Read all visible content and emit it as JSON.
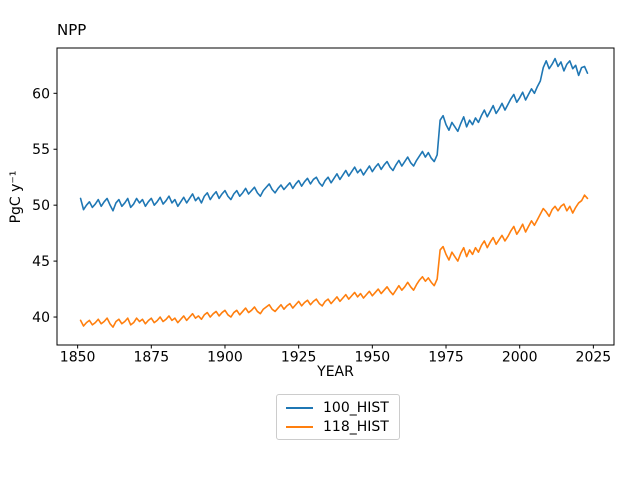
{
  "chart_data": {
    "type": "line",
    "title": "NPP",
    "xlabel": "YEAR",
    "ylabel": "PgC y⁻¹",
    "grid": false,
    "legend_position": "below-center",
    "xlim": [
      1843,
      2032
    ],
    "ylim": [
      37.5,
      64.05
    ],
    "xticks": [
      1850,
      1875,
      1900,
      1925,
      1950,
      1975,
      2000,
      2025
    ],
    "yticks": [
      40,
      45,
      50,
      55,
      60
    ],
    "x": [
      1851,
      1852,
      1853,
      1854,
      1855,
      1856,
      1857,
      1858,
      1859,
      1860,
      1861,
      1862,
      1863,
      1864,
      1865,
      1866,
      1867,
      1868,
      1869,
      1870,
      1871,
      1872,
      1873,
      1874,
      1875,
      1876,
      1877,
      1878,
      1879,
      1880,
      1881,
      1882,
      1883,
      1884,
      1885,
      1886,
      1887,
      1888,
      1889,
      1890,
      1891,
      1892,
      1893,
      1894,
      1895,
      1896,
      1897,
      1898,
      1899,
      1900,
      1901,
      1902,
      1903,
      1904,
      1905,
      1906,
      1907,
      1908,
      1909,
      1910,
      1911,
      1912,
      1913,
      1914,
      1915,
      1916,
      1917,
      1918,
      1919,
      1920,
      1921,
      1922,
      1923,
      1924,
      1925,
      1926,
      1927,
      1928,
      1929,
      1930,
      1931,
      1932,
      1933,
      1934,
      1935,
      1936,
      1937,
      1938,
      1939,
      1940,
      1941,
      1942,
      1943,
      1944,
      1945,
      1946,
      1947,
      1948,
      1949,
      1950,
      1951,
      1952,
      1953,
      1954,
      1955,
      1956,
      1957,
      1958,
      1959,
      1960,
      1961,
      1962,
      1963,
      1964,
      1965,
      1966,
      1967,
      1968,
      1969,
      1970,
      1971,
      1972,
      1973,
      1974,
      1975,
      1976,
      1977,
      1978,
      1979,
      1980,
      1981,
      1982,
      1983,
      1984,
      1985,
      1986,
      1987,
      1988,
      1989,
      1990,
      1991,
      1992,
      1993,
      1994,
      1995,
      1996,
      1997,
      1998,
      1999,
      2000,
      2001,
      2002,
      2003,
      2004,
      2005,
      2006,
      2007,
      2008,
      2009,
      2010,
      2011,
      2012,
      2013,
      2014,
      2015,
      2016,
      2017,
      2018,
      2019,
      2020,
      2021,
      2022,
      2023
    ],
    "series": [
      {
        "name": "100_HIST",
        "color": "#1f77b4",
        "values": [
          50.6,
          49.6,
          50.0,
          50.3,
          49.8,
          50.1,
          50.5,
          49.9,
          50.3,
          50.6,
          50.0,
          49.5,
          50.2,
          50.5,
          49.9,
          50.2,
          50.6,
          49.8,
          50.1,
          50.6,
          50.2,
          50.5,
          49.9,
          50.3,
          50.6,
          50.0,
          50.3,
          50.7,
          50.1,
          50.4,
          50.8,
          50.2,
          50.5,
          49.9,
          50.3,
          50.7,
          50.2,
          50.6,
          51.0,
          50.4,
          50.7,
          50.2,
          50.8,
          51.1,
          50.5,
          50.9,
          51.2,
          50.6,
          51.0,
          51.3,
          50.8,
          50.5,
          51.0,
          51.3,
          50.8,
          51.1,
          51.5,
          51.0,
          51.3,
          51.6,
          51.1,
          50.8,
          51.3,
          51.6,
          51.9,
          51.4,
          51.1,
          51.5,
          51.8,
          51.4,
          51.7,
          52.0,
          51.5,
          51.9,
          52.2,
          51.7,
          52.1,
          52.4,
          51.9,
          52.3,
          52.5,
          52.0,
          51.7,
          52.2,
          52.5,
          52.0,
          52.4,
          52.8,
          52.3,
          52.7,
          53.1,
          52.6,
          53.0,
          53.4,
          52.9,
          53.2,
          52.7,
          53.1,
          53.5,
          53.0,
          53.4,
          53.7,
          53.2,
          53.6,
          53.9,
          53.4,
          53.1,
          53.6,
          54.0,
          53.5,
          53.9,
          54.3,
          53.8,
          53.5,
          54.0,
          54.4,
          54.8,
          54.3,
          54.7,
          54.2,
          53.9,
          54.5,
          57.6,
          58.0,
          57.2,
          56.7,
          57.4,
          57.0,
          56.6,
          57.3,
          57.9,
          57.0,
          57.6,
          57.2,
          57.8,
          57.4,
          58.0,
          58.5,
          57.9,
          58.4,
          58.9,
          58.2,
          58.6,
          59.1,
          58.5,
          59.0,
          59.5,
          59.9,
          59.2,
          59.6,
          60.1,
          59.4,
          59.9,
          60.4,
          60.0,
          60.6,
          61.1,
          62.3,
          62.9,
          62.2,
          62.6,
          63.1,
          62.4,
          62.8,
          62.0,
          62.6,
          62.9,
          62.2,
          62.5,
          61.6,
          62.3,
          62.4,
          61.8
        ]
      },
      {
        "name": "118_HIST",
        "color": "#ff7f0e",
        "values": [
          39.7,
          39.2,
          39.5,
          39.7,
          39.3,
          39.5,
          39.8,
          39.4,
          39.6,
          39.9,
          39.4,
          39.1,
          39.6,
          39.8,
          39.4,
          39.6,
          39.9,
          39.3,
          39.5,
          39.9,
          39.6,
          39.8,
          39.4,
          39.7,
          39.9,
          39.5,
          39.7,
          40.0,
          39.6,
          39.8,
          40.1,
          39.7,
          39.9,
          39.5,
          39.8,
          40.1,
          39.7,
          40.0,
          40.3,
          39.9,
          40.1,
          39.8,
          40.2,
          40.4,
          40.0,
          40.3,
          40.5,
          40.1,
          40.4,
          40.6,
          40.2,
          40.0,
          40.4,
          40.6,
          40.2,
          40.5,
          40.8,
          40.4,
          40.6,
          40.9,
          40.5,
          40.3,
          40.7,
          40.9,
          41.1,
          40.7,
          40.5,
          40.8,
          41.1,
          40.7,
          41.0,
          41.2,
          40.8,
          41.1,
          41.4,
          41.0,
          41.3,
          41.5,
          41.1,
          41.4,
          41.6,
          41.2,
          41.0,
          41.4,
          41.6,
          41.2,
          41.5,
          41.8,
          41.4,
          41.7,
          42.0,
          41.6,
          41.9,
          42.2,
          41.8,
          42.1,
          41.7,
          42.0,
          42.3,
          41.9,
          42.2,
          42.5,
          42.1,
          42.4,
          42.7,
          42.3,
          42.0,
          42.4,
          42.8,
          42.4,
          42.7,
          43.1,
          42.7,
          42.4,
          42.9,
          43.3,
          43.6,
          43.2,
          43.5,
          43.1,
          42.8,
          43.4,
          46.0,
          46.3,
          45.6,
          45.1,
          45.8,
          45.4,
          45.0,
          45.7,
          46.2,
          45.4,
          46.0,
          45.6,
          46.2,
          45.8,
          46.4,
          46.8,
          46.2,
          46.7,
          47.1,
          46.5,
          46.9,
          47.3,
          46.8,
          47.2,
          47.7,
          48.1,
          47.4,
          47.8,
          48.3,
          47.6,
          48.1,
          48.6,
          48.2,
          48.7,
          49.2,
          49.7,
          49.4,
          49.0,
          49.6,
          49.9,
          49.5,
          49.9,
          50.1,
          49.5,
          49.9,
          49.3,
          49.8,
          50.2,
          50.4,
          50.9,
          50.6
        ]
      }
    ]
  }
}
